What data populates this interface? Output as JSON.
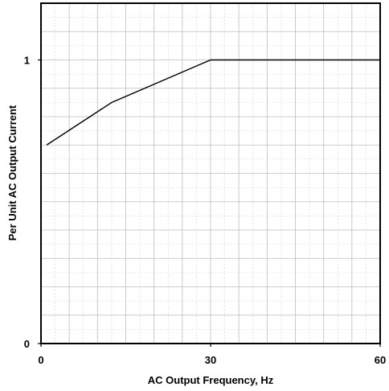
{
  "chart_data": {
    "type": "line",
    "title": "",
    "xlabel": "AC Output Frequency, Hz",
    "ylabel": "Per Unit AC Output Current",
    "xlim": [
      0,
      60
    ],
    "ylim": [
      0,
      1.2
    ],
    "x_ticks": [
      0,
      30,
      60
    ],
    "x_tick_labels": [
      "0",
      "30",
      "60"
    ],
    "y_ticks": [
      0,
      1
    ],
    "y_tick_labels": [
      "0",
      "1"
    ],
    "grid": true,
    "major_grid_x_step": 5,
    "major_grid_y_step": 0.1,
    "minor_grid_x_step": 2.5,
    "minor_grid_y_step": 0.05,
    "line_color": "#000000",
    "series": [
      {
        "x": [
          1,
          12.5,
          30,
          60
        ],
        "y": [
          0.7,
          0.85,
          1.0,
          1.0
        ]
      }
    ]
  }
}
